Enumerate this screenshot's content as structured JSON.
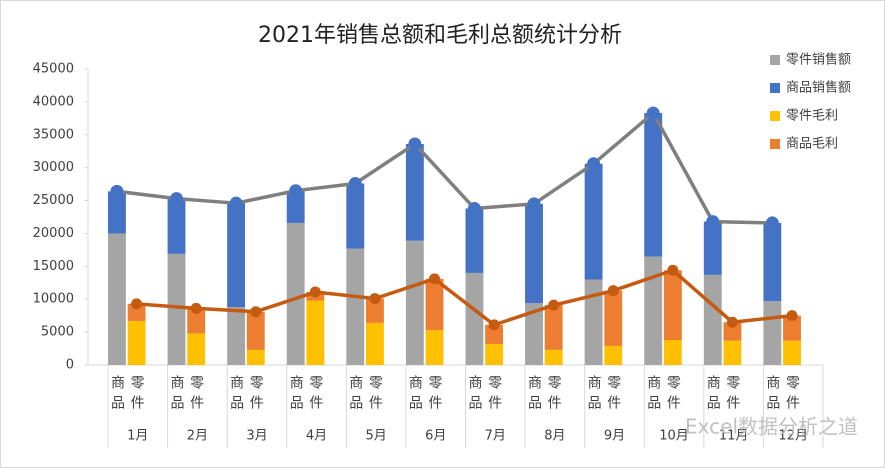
{
  "chart_data": {
    "type": "bar",
    "title": "2021年销售总额和毛利总额统计分析",
    "categories": [
      "1月",
      "2月",
      "3月",
      "4月",
      "5月",
      "6月",
      "7月",
      "8月",
      "9月",
      "10月",
      "11月",
      "12月"
    ],
    "sub_categories": [
      "商品",
      "零件"
    ],
    "series": [
      {
        "name": "零件销售额",
        "color": "#a5a5a5",
        "stack": 0,
        "values": [
          20000,
          16900,
          8800,
          21600,
          17700,
          18900,
          14000,
          9400,
          13000,
          16500,
          13700,
          9700
        ]
      },
      {
        "name": "商品销售额",
        "color": "#4472c4",
        "stack": 0,
        "values": [
          6400,
          8400,
          15800,
          4900,
          9900,
          14700,
          9800,
          15100,
          17600,
          21800,
          8100,
          11900
        ]
      },
      {
        "name": "零件毛利",
        "color": "#ffc000",
        "stack": 1,
        "values": [
          6700,
          4800,
          2300,
          9800,
          6400,
          5300,
          3200,
          2300,
          2900,
          3800,
          3700,
          3700
        ]
      },
      {
        "name": "商品毛利",
        "color": "#ed7d31",
        "stack": 1,
        "values": [
          2600,
          3800,
          5800,
          1300,
          3700,
          7800,
          2900,
          6800,
          8400,
          10600,
          2800,
          3800
        ]
      }
    ],
    "total_lines": [
      {
        "line_color": "#7f7f7f",
        "marker_color": "#4472c4"
      },
      {
        "line_color": "#c55a11",
        "marker_color": "#c55a11"
      }
    ],
    "ylim": [
      0,
      45000
    ],
    "yticks": [
      0,
      5000,
      10000,
      15000,
      20000,
      25000,
      30000,
      35000,
      40000,
      45000
    ],
    "watermark": "Excel数据分析之道"
  }
}
